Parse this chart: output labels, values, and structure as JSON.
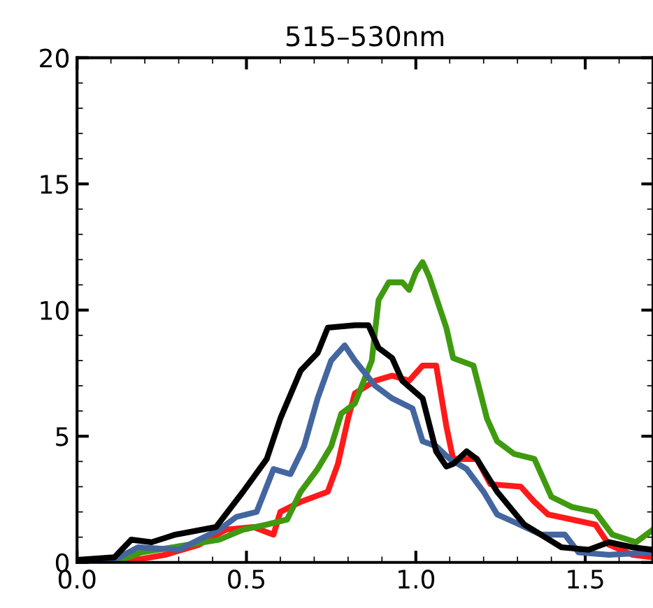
{
  "chart_data": {
    "type": "line",
    "title": "515–530nm",
    "xlim": [
      0,
      1.7
    ],
    "ylim": [
      0,
      20
    ],
    "xticks": [
      {
        "value": 0,
        "label": "0.0"
      },
      {
        "value": 0.5,
        "label": "0.5"
      },
      {
        "value": 1.0,
        "label": "1.0"
      },
      {
        "value": 1.5,
        "label": "1.5"
      }
    ],
    "yticks": [
      0,
      5,
      10,
      15,
      20
    ],
    "grid": false,
    "legend": false,
    "marker": "none",
    "line_style": "solid",
    "series": [
      {
        "color": "#ff1a1a",
        "x": [
          0,
          0.13,
          0.26,
          0.36,
          0.44,
          0.52,
          0.58,
          0.6,
          0.66,
          0.74,
          0.77,
          0.8,
          0.82,
          0.88,
          0.93,
          0.98,
          1.02,
          1.06,
          1.09,
          1.11,
          1.18,
          1.22,
          1.31,
          1.35,
          1.39,
          1.46,
          1.53,
          1.57,
          1.64,
          1.7
        ],
        "values": [
          0,
          0,
          0.3,
          0.7,
          1.3,
          1.4,
          1.1,
          2.0,
          2.4,
          2.8,
          3.9,
          5.7,
          6.7,
          7.2,
          7.4,
          7.2,
          7.8,
          7.8,
          5.4,
          4.1,
          4.1,
          3.1,
          3.0,
          2.4,
          1.9,
          1.7,
          1.5,
          0.7,
          0.3,
          0.2
        ]
      },
      {
        "color": "#3f9a10",
        "x": [
          0,
          0.11,
          0.19,
          0.33,
          0.42,
          0.49,
          0.56,
          0.62,
          0.66,
          0.71,
          0.75,
          0.78,
          0.82,
          0.87,
          0.89,
          0.92,
          0.96,
          0.98,
          1.0,
          1.02,
          1.04,
          1.09,
          1.11,
          1.17,
          1.21,
          1.24,
          1.29,
          1.35,
          1.4,
          1.46,
          1.53,
          1.58,
          1.65,
          1.7
        ],
        "values": [
          0,
          0,
          0.4,
          0.7,
          0.9,
          1.3,
          1.5,
          1.7,
          2.8,
          3.7,
          4.6,
          5.9,
          6.3,
          8.0,
          10.4,
          11.1,
          11.1,
          10.8,
          11.5,
          11.9,
          11.3,
          9.3,
          8.1,
          7.8,
          5.7,
          4.8,
          4.3,
          4.1,
          2.6,
          2.2,
          2.0,
          1.1,
          0.8,
          1.3
        ]
      },
      {
        "color": "#4466a0",
        "x": [
          0,
          0.11,
          0.18,
          0.3,
          0.42,
          0.47,
          0.53,
          0.58,
          0.63,
          0.67,
          0.71,
          0.75,
          0.79,
          0.82,
          0.88,
          0.93,
          0.99,
          1.02,
          1.06,
          1.1,
          1.15,
          1.2,
          1.24,
          1.29,
          1.37,
          1.44,
          1.48,
          1.57,
          1.7
        ],
        "values": [
          0,
          0.1,
          0.6,
          0.5,
          1.3,
          1.8,
          2.0,
          3.7,
          3.5,
          4.6,
          6.5,
          8.0,
          8.6,
          8.0,
          7.0,
          6.5,
          6.1,
          4.8,
          4.6,
          4.1,
          3.7,
          2.8,
          1.9,
          1.6,
          1.1,
          1.1,
          0.4,
          0.3,
          0.4
        ]
      },
      {
        "color": "#000000",
        "x": [
          0,
          0.11,
          0.16,
          0.22,
          0.29,
          0.41,
          0.49,
          0.56,
          0.6,
          0.66,
          0.71,
          0.74,
          0.82,
          0.86,
          0.89,
          0.93,
          0.96,
          1.02,
          1.06,
          1.09,
          1.11,
          1.15,
          1.18,
          1.24,
          1.32,
          1.43,
          1.51,
          1.57,
          1.64,
          1.7
        ],
        "values": [
          0.1,
          0.2,
          0.9,
          0.8,
          1.1,
          1.4,
          2.8,
          4.1,
          5.7,
          7.6,
          8.3,
          9.3,
          9.4,
          9.4,
          8.5,
          8.1,
          7.2,
          6.5,
          4.4,
          3.8,
          3.9,
          4.4,
          4.1,
          2.8,
          1.5,
          0.6,
          0.5,
          0.8,
          0.6,
          0.5
        ]
      }
    ]
  }
}
